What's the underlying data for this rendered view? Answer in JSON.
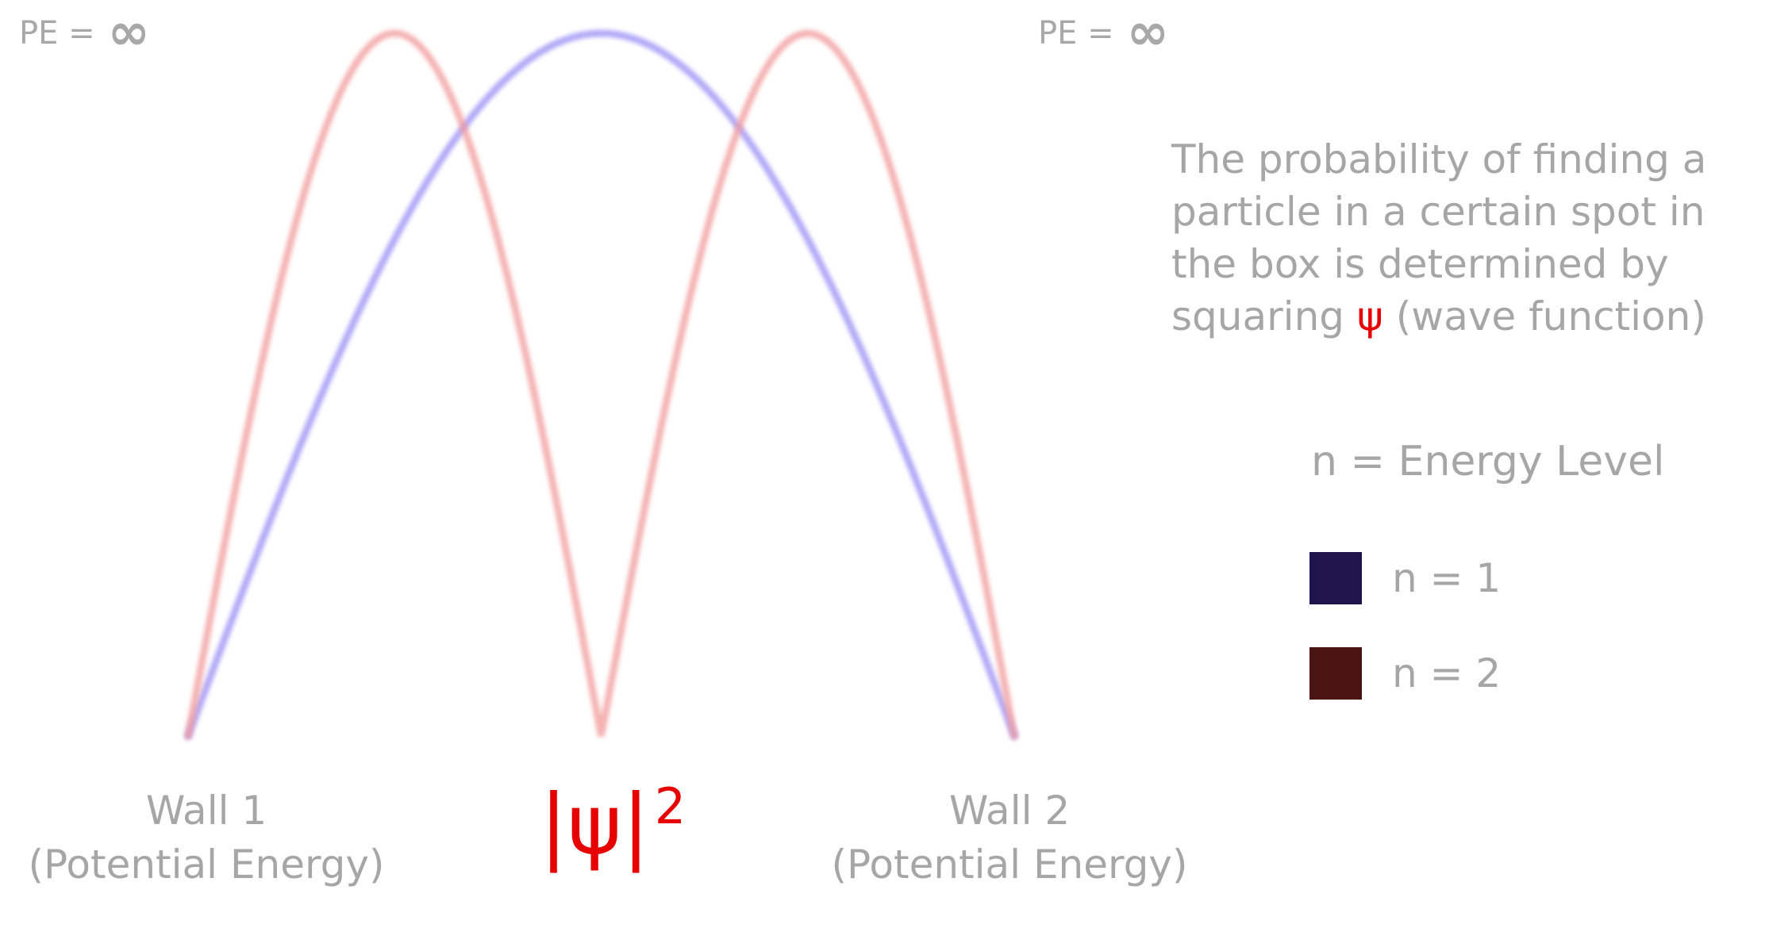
{
  "pe_left": {
    "prefix": "PE =",
    "infinity": "∞"
  },
  "pe_right": {
    "prefix": "PE =",
    "infinity": "∞"
  },
  "wall_1": {
    "line1": "Wall 1",
    "line2": "(Potential Energy)"
  },
  "wall_2": {
    "line1": "Wall 2",
    "line2": "(Potential Energy)"
  },
  "psi_label": {
    "base": "|ψ|",
    "exponent": "2"
  },
  "description": {
    "before": "The probability of finding a particle in a certain spot in the box is determined by squaring",
    "psi": "ψ",
    "after": "(wave function)"
  },
  "legend": {
    "title": "n = Energy Level",
    "items": [
      {
        "label": "n = 1",
        "color": "#1f144b"
      },
      {
        "label": "n = 2",
        "color": "#4a1414"
      }
    ]
  },
  "curve_colors": {
    "n1": "#9b8cf5",
    "n2": "#f29a9a"
  }
}
